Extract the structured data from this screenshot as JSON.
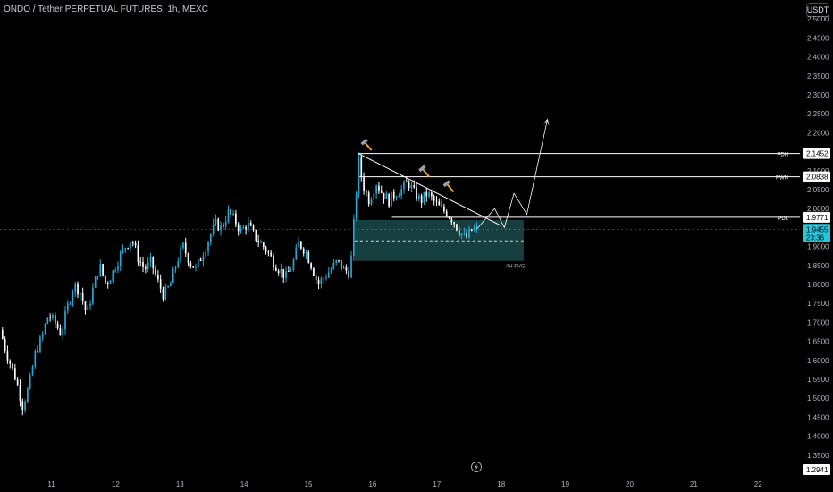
{
  "header": {
    "title": "ONDO / Tether PERPETUAL FUTURES, 1h, MEXC",
    "currency": "USDT"
  },
  "colors": {
    "background": "#000000",
    "up": "#26a8d6",
    "down": "#ffffff",
    "zone_fill": "#1c4a4a",
    "price_tag": "#26c6da",
    "text": "#b2b5be"
  },
  "chart_data": {
    "type": "candlestick",
    "symbol": "ONDO / Tether PERPETUAL FUTURES",
    "interval": "1h",
    "exchange": "MEXC",
    "y_ticks": [
      "2.5000",
      "2.4500",
      "2.4000",
      "2.3500",
      "2.3000",
      "2.2500",
      "2.2000",
      "2.1500",
      "2.1000",
      "2.0500",
      "2.0000",
      "1.9500",
      "1.9000",
      "1.8500",
      "1.8000",
      "1.7500",
      "1.7000",
      "1.6500",
      "1.6000",
      "1.5500",
      "1.5000",
      "1.4500",
      "1.4000",
      "1.3500"
    ],
    "ylim": [
      1.3,
      2.55
    ],
    "x_ticks": [
      "11",
      "12",
      "13",
      "14",
      "15",
      "16",
      "17",
      "18",
      "19",
      "20",
      "21",
      "22"
    ],
    "x_tick_values": [
      11,
      12,
      13,
      14,
      15,
      16,
      17,
      18,
      19,
      20,
      21,
      22
    ],
    "xlim": [
      10.2,
      22.65
    ],
    "price_path": [
      [
        10.2,
        1.68
      ],
      [
        10.3,
        1.62
      ],
      [
        10.45,
        1.55
      ],
      [
        10.55,
        1.48
      ],
      [
        10.65,
        1.53
      ],
      [
        10.75,
        1.62
      ],
      [
        10.85,
        1.66
      ],
      [
        10.95,
        1.72
      ],
      [
        11.05,
        1.7
      ],
      [
        11.15,
        1.67
      ],
      [
        11.25,
        1.74
      ],
      [
        11.35,
        1.8
      ],
      [
        11.45,
        1.78
      ],
      [
        11.55,
        1.72
      ],
      [
        11.65,
        1.79
      ],
      [
        11.75,
        1.85
      ],
      [
        11.85,
        1.8
      ],
      [
        11.95,
        1.83
      ],
      [
        12.05,
        1.87
      ],
      [
        12.15,
        1.9
      ],
      [
        12.25,
        1.92
      ],
      [
        12.35,
        1.87
      ],
      [
        12.45,
        1.84
      ],
      [
        12.55,
        1.86
      ],
      [
        12.65,
        1.81
      ],
      [
        12.75,
        1.77
      ],
      [
        12.85,
        1.8
      ],
      [
        12.95,
        1.86
      ],
      [
        13.05,
        1.9
      ],
      [
        13.15,
        1.86
      ],
      [
        13.25,
        1.84
      ],
      [
        13.35,
        1.88
      ],
      [
        13.45,
        1.92
      ],
      [
        13.55,
        1.96
      ],
      [
        13.65,
        1.95
      ],
      [
        13.75,
        1.99
      ],
      [
        13.85,
        1.97
      ],
      [
        13.95,
        1.94
      ],
      [
        14.05,
        1.96
      ],
      [
        14.15,
        1.93
      ],
      [
        14.25,
        1.91
      ],
      [
        14.35,
        1.89
      ],
      [
        14.45,
        1.86
      ],
      [
        14.55,
        1.84
      ],
      [
        14.65,
        1.82
      ],
      [
        14.75,
        1.85
      ],
      [
        14.85,
        1.91
      ],
      [
        14.95,
        1.89
      ],
      [
        15.05,
        1.85
      ],
      [
        15.15,
        1.8
      ],
      [
        15.25,
        1.82
      ],
      [
        15.35,
        1.84
      ],
      [
        15.45,
        1.86
      ],
      [
        15.55,
        1.84
      ],
      [
        15.65,
        1.83
      ],
      [
        15.72,
        1.99
      ],
      [
        15.78,
        2.13
      ],
      [
        15.85,
        2.06
      ],
      [
        15.95,
        2.02
      ],
      [
        16.05,
        2.07
      ],
      [
        16.15,
        2.04
      ],
      [
        16.25,
        2.02
      ],
      [
        16.35,
        2.04
      ],
      [
        16.45,
        2.05
      ],
      [
        16.55,
        2.07
      ],
      [
        16.65,
        2.04
      ],
      [
        16.75,
        2.02
      ],
      [
        16.85,
        2.04
      ],
      [
        16.95,
        2.02
      ],
      [
        17.05,
        2.0
      ],
      [
        17.15,
        1.99
      ],
      [
        17.25,
        1.97
      ],
      [
        17.35,
        1.94
      ],
      [
        17.45,
        1.92
      ],
      [
        17.55,
        1.945
      ],
      [
        17.62,
        1.946
      ]
    ],
    "levels": [
      {
        "label": "PDH",
        "value": 2.1452,
        "price_text": "2.1452",
        "start_x": 15.78
      },
      {
        "label": "PWH",
        "value": 2.0838,
        "price_text": "2.0838",
        "start_x": 15.78
      },
      {
        "label": "PDL",
        "value": 1.9771,
        "price_text": "1.9771",
        "start_x": 16.3
      }
    ],
    "current_price": {
      "value": 1.9455,
      "price_text": "1.9455",
      "countdown": "23:36"
    },
    "low_marker": {
      "value": 1.2941,
      "price_text": "1.2941"
    },
    "fvg_zone": {
      "label": "4H FVG",
      "top": 1.97,
      "bottom": 1.862,
      "mid": 1.915,
      "x_start": 15.72,
      "x_end": 18.35
    },
    "trendline": [
      [
        15.78,
        2.145
      ],
      [
        18.0,
        1.955
      ]
    ],
    "projection": [
      [
        17.62,
        1.946
      ],
      [
        17.9,
        2.0
      ],
      [
        18.05,
        1.95
      ],
      [
        18.2,
        2.04
      ],
      [
        18.4,
        1.985
      ],
      [
        18.72,
        2.235
      ]
    ],
    "hammer_icons": [
      [
        15.9,
        2.17
      ],
      [
        16.8,
        2.1
      ],
      [
        17.18,
        2.06
      ]
    ]
  }
}
